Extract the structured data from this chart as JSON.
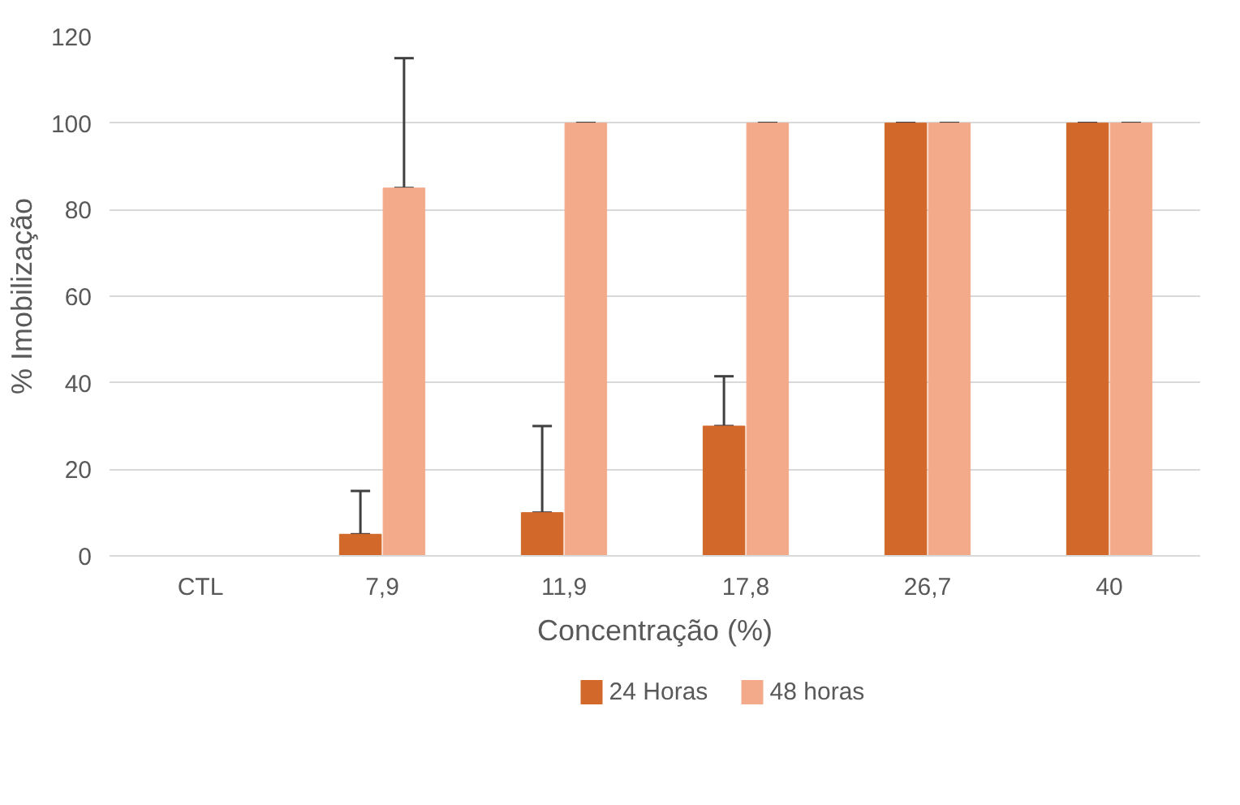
{
  "chart_data": {
    "type": "bar",
    "xlabel": "Concentração (%)",
    "ylabel": "% Imobilização",
    "categories": [
      "CTL",
      "7,9",
      "11,9",
      "17,8",
      "26,7",
      "40"
    ],
    "series": [
      {
        "name": "24 Horas",
        "color": "#d2692a",
        "values": [
          0,
          5,
          10,
          30,
          100,
          100
        ],
        "errors": [
          null,
          [
            5,
            15
          ],
          [
            10,
            30
          ],
          [
            30,
            41.5
          ],
          [
            100,
            100
          ],
          [
            100,
            100
          ]
        ]
      },
      {
        "name": "48 horas",
        "color": "#f3aa8a",
        "values": [
          0,
          85,
          100,
          100,
          100,
          100
        ],
        "errors": [
          null,
          [
            85,
            115
          ],
          [
            100,
            100
          ],
          [
            100,
            100
          ],
          [
            100,
            100
          ],
          [
            100,
            100
          ]
        ]
      }
    ],
    "ylim": [
      0,
      120
    ],
    "yticks": [
      0,
      20,
      40,
      60,
      80,
      100,
      120
    ],
    "grid": "y",
    "legend": "bottom"
  }
}
